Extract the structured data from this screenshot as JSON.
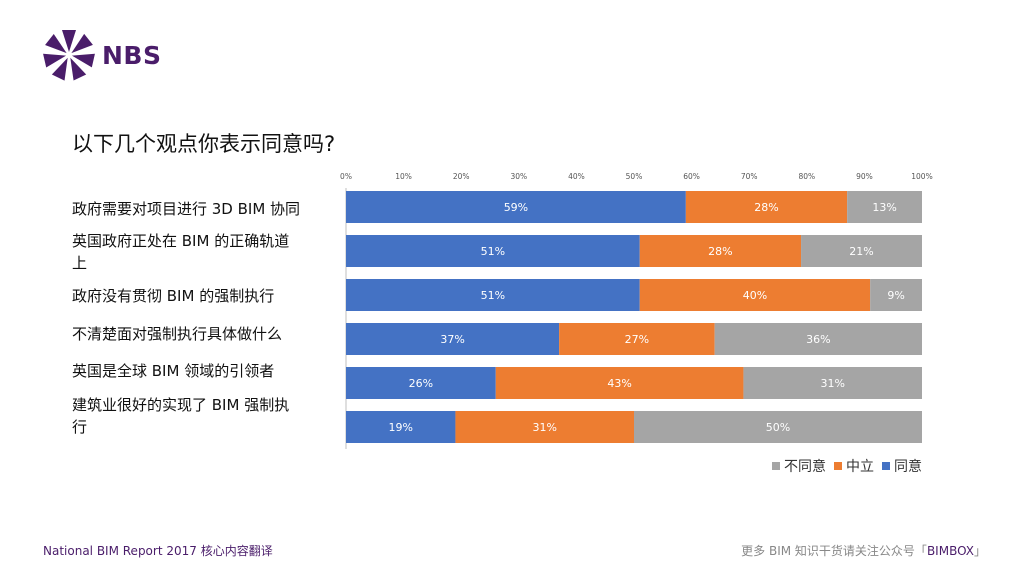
{
  "brand": {
    "name": "NBS"
  },
  "chart_data": {
    "type": "bar",
    "orientation": "horizontal",
    "stacked": true,
    "title": "以下几个观点你表示同意吗?",
    "categories": [
      "政府需要对项目进行 3D BIM 协同",
      "英国政府正处在 BIM 的正确轨道上",
      "政府没有贯彻 BIM 的强制执行",
      "不清楚面对强制执行具体做什么",
      "英国是全球 BIM 领域的引领者",
      "建筑业很好的实现了 BIM 强制执行"
    ],
    "series": [
      {
        "name": "同意",
        "color": "#4472c4",
        "values": [
          59,
          51,
          51,
          37,
          26,
          19
        ]
      },
      {
        "name": "中立",
        "color": "#ed7d31",
        "values": [
          28,
          28,
          40,
          27,
          43,
          31
        ]
      },
      {
        "name": "不同意",
        "color": "#a5a5a5",
        "values": [
          13,
          21,
          9,
          36,
          31,
          50
        ]
      }
    ],
    "xlim": [
      0,
      100
    ],
    "x_ticks": [
      "0%",
      "10%",
      "20%",
      "30%",
      "40%",
      "50%",
      "60%",
      "70%",
      "80%",
      "90%",
      "100%"
    ],
    "legend_order": [
      "不同意",
      "中立",
      "同意"
    ],
    "legend_position": "bottom-right"
  },
  "category_label_lines": [
    [
      "政府需要对项目进行 3D BIM 协同"
    ],
    [
      "英国政府正处在 BIM 的正确轨道",
      "上"
    ],
    [
      "政府没有贯彻 BIM 的强制执行"
    ],
    [
      "不清楚面对强制执行具体做什么"
    ],
    [
      "英国是全球 BIM 领域的引领者"
    ],
    [
      "建筑业很好的实现了 BIM 强制执",
      "行"
    ]
  ],
  "footer": {
    "left": "National BIM Report 2017  核心内容翻译",
    "right_prefix": "更多 BIM 知识干货请关注公众号「",
    "right_accent": "BIMBOX",
    "right_suffix": "」"
  }
}
